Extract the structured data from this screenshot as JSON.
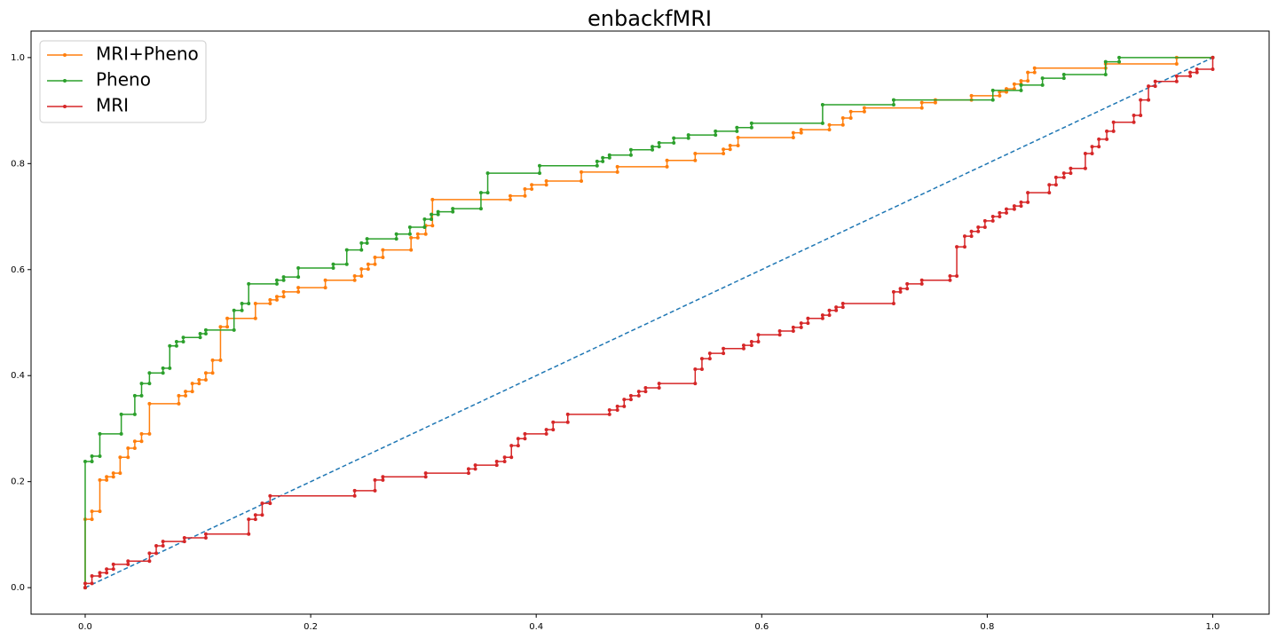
{
  "chart_data": {
    "type": "line",
    "title": "enbackfMRI",
    "xlim": [
      -0.048,
      1.05
    ],
    "ylim": [
      -0.05,
      1.05
    ],
    "xticks": [
      {
        "value": 0,
        "label": "0.0"
      },
      0.2,
      0.4,
      0.6,
      0.8,
      {
        "value": 1,
        "label": "1.0"
      }
    ],
    "yticks": [
      {
        "value": 0,
        "label": "0.0"
      },
      0.2,
      0.4,
      0.6,
      0.8,
      {
        "value": 1,
        "label": "1.0"
      }
    ],
    "legend": "upper left",
    "reference": {
      "color": "#1f77b4",
      "x": [
        0,
        1
      ],
      "values": [
        0,
        1
      ]
    },
    "series": [
      {
        "name": "MRI+Pheno",
        "color": "#ff7f0e",
        "x": [
          0,
          0,
          0.006,
          0.006,
          0.013,
          0.013,
          0.019,
          0.019,
          0.025,
          0.025,
          0.031,
          0.031,
          0.038,
          0.038,
          0.044,
          0.044,
          0.05,
          0.05,
          0.057,
          0.057,
          0.083,
          0.083,
          0.089,
          0.089,
          0.095,
          0.095,
          0.101,
          0.101,
          0.107,
          0.107,
          0.113,
          0.113,
          0.12,
          0.12,
          0.126,
          0.126,
          0.151,
          0.151,
          0.164,
          0.164,
          0.17,
          0.17,
          0.176,
          0.176,
          0.189,
          0.189,
          0.213,
          0.213,
          0.239,
          0.239,
          0.245,
          0.245,
          0.251,
          0.251,
          0.257,
          0.257,
          0.264,
          0.264,
          0.289,
          0.289,
          0.295,
          0.295,
          0.302,
          0.302,
          0.308,
          0.308,
          0.377,
          0.377,
          0.39,
          0.39,
          0.396,
          0.396,
          0.409,
          0.409,
          0.44,
          0.44,
          0.472,
          0.472,
          0.516,
          0.516,
          0.541,
          0.541,
          0.566,
          0.566,
          0.572,
          0.572,
          0.579,
          0.579,
          0.628,
          0.628,
          0.635,
          0.635,
          0.66,
          0.66,
          0.672,
          0.672,
          0.679,
          0.679,
          0.691,
          0.691,
          0.742,
          0.742,
          0.754,
          0.754,
          0.786,
          0.786,
          0.811,
          0.811,
          0.817,
          0.817,
          0.824,
          0.824,
          0.83,
          0.83,
          0.836,
          0.836,
          0.842,
          0.842,
          0.905,
          0.905,
          0.968,
          0.968,
          1
        ],
        "values": [
          0,
          0.129,
          0.129,
          0.144,
          0.144,
          0.203,
          0.203,
          0.209,
          0.209,
          0.216,
          0.216,
          0.246,
          0.246,
          0.263,
          0.263,
          0.276,
          0.276,
          0.29,
          0.29,
          0.347,
          0.347,
          0.362,
          0.362,
          0.37,
          0.37,
          0.385,
          0.385,
          0.392,
          0.392,
          0.405,
          0.405,
          0.429,
          0.429,
          0.492,
          0.492,
          0.508,
          0.508,
          0.536,
          0.536,
          0.543,
          0.543,
          0.549,
          0.549,
          0.558,
          0.558,
          0.566,
          0.566,
          0.58,
          0.58,
          0.588,
          0.588,
          0.601,
          0.601,
          0.61,
          0.61,
          0.623,
          0.623,
          0.637,
          0.637,
          0.66,
          0.66,
          0.667,
          0.667,
          0.683,
          0.683,
          0.732,
          0.732,
          0.739,
          0.739,
          0.752,
          0.752,
          0.76,
          0.76,
          0.767,
          0.767,
          0.784,
          0.784,
          0.794,
          0.794,
          0.806,
          0.806,
          0.819,
          0.819,
          0.827,
          0.827,
          0.834,
          0.834,
          0.849,
          0.849,
          0.858,
          0.858,
          0.864,
          0.864,
          0.873,
          0.873,
          0.886,
          0.886,
          0.898,
          0.898,
          0.905,
          0.905,
          0.915,
          0.915,
          0.92,
          0.92,
          0.928,
          0.928,
          0.935,
          0.935,
          0.941,
          0.941,
          0.95,
          0.95,
          0.956,
          0.956,
          0.972,
          0.972,
          0.98,
          0.98,
          0.988,
          0.988,
          1,
          1
        ]
      },
      {
        "name": "Pheno",
        "color": "#2ca02c",
        "x": [
          0,
          0,
          0.006,
          0.006,
          0.013,
          0.013,
          0.032,
          0.032,
          0.044,
          0.044,
          0.05,
          0.05,
          0.057,
          0.057,
          0.069,
          0.069,
          0.075,
          0.075,
          0.081,
          0.081,
          0.087,
          0.087,
          0.102,
          0.102,
          0.107,
          0.107,
          0.132,
          0.132,
          0.139,
          0.139,
          0.145,
          0.145,
          0.17,
          0.17,
          0.176,
          0.176,
          0.189,
          0.189,
          0.22,
          0.22,
          0.232,
          0.232,
          0.245,
          0.245,
          0.25,
          0.25,
          0.276,
          0.276,
          0.288,
          0.288,
          0.301,
          0.301,
          0.307,
          0.307,
          0.313,
          0.313,
          0.326,
          0.326,
          0.351,
          0.351,
          0.357,
          0.357,
          0.403,
          0.403,
          0.454,
          0.454,
          0.459,
          0.459,
          0.465,
          0.465,
          0.484,
          0.484,
          0.503,
          0.503,
          0.509,
          0.509,
          0.522,
          0.522,
          0.535,
          0.535,
          0.559,
          0.559,
          0.578,
          0.578,
          0.591,
          0.591,
          0.654,
          0.654,
          0.717,
          0.717,
          0.805,
          0.805,
          0.83,
          0.83,
          0.849,
          0.849,
          0.868,
          0.868,
          0.905,
          0.905,
          0.917,
          0.917,
          1
        ],
        "values": [
          0,
          0.238,
          0.238,
          0.248,
          0.248,
          0.29,
          0.29,
          0.327,
          0.327,
          0.362,
          0.362,
          0.385,
          0.385,
          0.405,
          0.405,
          0.414,
          0.414,
          0.456,
          0.456,
          0.464,
          0.464,
          0.472,
          0.472,
          0.479,
          0.479,
          0.486,
          0.486,
          0.523,
          0.523,
          0.536,
          0.536,
          0.573,
          0.573,
          0.58,
          0.58,
          0.586,
          0.586,
          0.603,
          0.603,
          0.61,
          0.61,
          0.637,
          0.637,
          0.65,
          0.65,
          0.658,
          0.658,
          0.667,
          0.667,
          0.68,
          0.68,
          0.695,
          0.695,
          0.704,
          0.704,
          0.709,
          0.709,
          0.715,
          0.715,
          0.745,
          0.745,
          0.782,
          0.782,
          0.796,
          0.796,
          0.804,
          0.804,
          0.811,
          0.811,
          0.816,
          0.816,
          0.826,
          0.826,
          0.832,
          0.832,
          0.839,
          0.839,
          0.848,
          0.848,
          0.854,
          0.854,
          0.861,
          0.861,
          0.868,
          0.868,
          0.876,
          0.876,
          0.911,
          0.911,
          0.92,
          0.92,
          0.938,
          0.938,
          0.948,
          0.948,
          0.961,
          0.961,
          0.968,
          0.968,
          0.992,
          0.992,
          1,
          1
        ]
      },
      {
        "name": "MRI",
        "color": "#d62728",
        "x": [
          0,
          0,
          0.006,
          0.006,
          0.013,
          0.013,
          0.019,
          0.019,
          0.025,
          0.025,
          0.038,
          0.038,
          0.057,
          0.057,
          0.063,
          0.063,
          0.069,
          0.069,
          0.088,
          0.088,
          0.107,
          0.107,
          0.145,
          0.145,
          0.151,
          0.151,
          0.157,
          0.157,
          0.164,
          0.164,
          0.239,
          0.239,
          0.257,
          0.257,
          0.264,
          0.264,
          0.302,
          0.302,
          0.34,
          0.34,
          0.346,
          0.346,
          0.365,
          0.365,
          0.372,
          0.372,
          0.378,
          0.378,
          0.384,
          0.384,
          0.39,
          0.39,
          0.409,
          0.409,
          0.415,
          0.415,
          0.428,
          0.428,
          0.465,
          0.465,
          0.472,
          0.472,
          0.478,
          0.478,
          0.484,
          0.484,
          0.491,
          0.491,
          0.497,
          0.497,
          0.509,
          0.509,
          0.541,
          0.541,
          0.547,
          0.547,
          0.554,
          0.554,
          0.566,
          0.566,
          0.584,
          0.584,
          0.591,
          0.591,
          0.597,
          0.597,
          0.616,
          0.616,
          0.628,
          0.628,
          0.635,
          0.635,
          0.641,
          0.641,
          0.654,
          0.654,
          0.66,
          0.66,
          0.666,
          0.666,
          0.672,
          0.672,
          0.717,
          0.717,
          0.723,
          0.723,
          0.729,
          0.729,
          0.742,
          0.742,
          0.767,
          0.767,
          0.773,
          0.773,
          0.78,
          0.78,
          0.786,
          0.786,
          0.792,
          0.792,
          0.798,
          0.798,
          0.805,
          0.805,
          0.811,
          0.811,
          0.817,
          0.817,
          0.824,
          0.824,
          0.83,
          0.83,
          0.836,
          0.836,
          0.855,
          0.855,
          0.861,
          0.861,
          0.868,
          0.868,
          0.874,
          0.874,
          0.887,
          0.887,
          0.893,
          0.893,
          0.899,
          0.899,
          0.906,
          0.906,
          0.912,
          0.912,
          0.93,
          0.93,
          0.936,
          0.936,
          0.943,
          0.943,
          0.949,
          0.949,
          0.968,
          0.968,
          0.98,
          0.98,
          0.986,
          0.986,
          1,
          1
        ],
        "values": [
          0,
          0.008,
          0.008,
          0.022,
          0.022,
          0.028,
          0.028,
          0.035,
          0.035,
          0.044,
          0.044,
          0.05,
          0.05,
          0.065,
          0.065,
          0.079,
          0.079,
          0.087,
          0.087,
          0.094,
          0.094,
          0.101,
          0.101,
          0.129,
          0.129,
          0.137,
          0.137,
          0.159,
          0.159,
          0.173,
          0.173,
          0.183,
          0.183,
          0.203,
          0.203,
          0.209,
          0.209,
          0.216,
          0.216,
          0.224,
          0.224,
          0.231,
          0.231,
          0.238,
          0.238,
          0.246,
          0.246,
          0.268,
          0.268,
          0.281,
          0.281,
          0.29,
          0.29,
          0.298,
          0.298,
          0.312,
          0.312,
          0.327,
          0.327,
          0.335,
          0.335,
          0.342,
          0.342,
          0.355,
          0.355,
          0.362,
          0.362,
          0.37,
          0.37,
          0.377,
          0.377,
          0.385,
          0.385,
          0.412,
          0.412,
          0.432,
          0.432,
          0.442,
          0.442,
          0.451,
          0.451,
          0.457,
          0.457,
          0.464,
          0.464,
          0.477,
          0.477,
          0.484,
          0.484,
          0.491,
          0.491,
          0.499,
          0.499,
          0.508,
          0.508,
          0.514,
          0.514,
          0.523,
          0.523,
          0.529,
          0.529,
          0.536,
          0.536,
          0.558,
          0.558,
          0.564,
          0.564,
          0.573,
          0.573,
          0.58,
          0.58,
          0.588,
          0.588,
          0.643,
          0.643,
          0.663,
          0.663,
          0.672,
          0.672,
          0.68,
          0.68,
          0.692,
          0.692,
          0.7,
          0.7,
          0.707,
          0.707,
          0.714,
          0.714,
          0.72,
          0.72,
          0.727,
          0.727,
          0.745,
          0.745,
          0.76,
          0.76,
          0.774,
          0.774,
          0.782,
          0.782,
          0.791,
          0.791,
          0.819,
          0.819,
          0.832,
          0.832,
          0.846,
          0.846,
          0.861,
          0.861,
          0.878,
          0.878,
          0.891,
          0.891,
          0.92,
          0.92,
          0.946,
          0.946,
          0.955,
          0.955,
          0.965,
          0.965,
          0.972,
          0.972,
          0.978,
          0.978,
          1
        ]
      }
    ]
  }
}
